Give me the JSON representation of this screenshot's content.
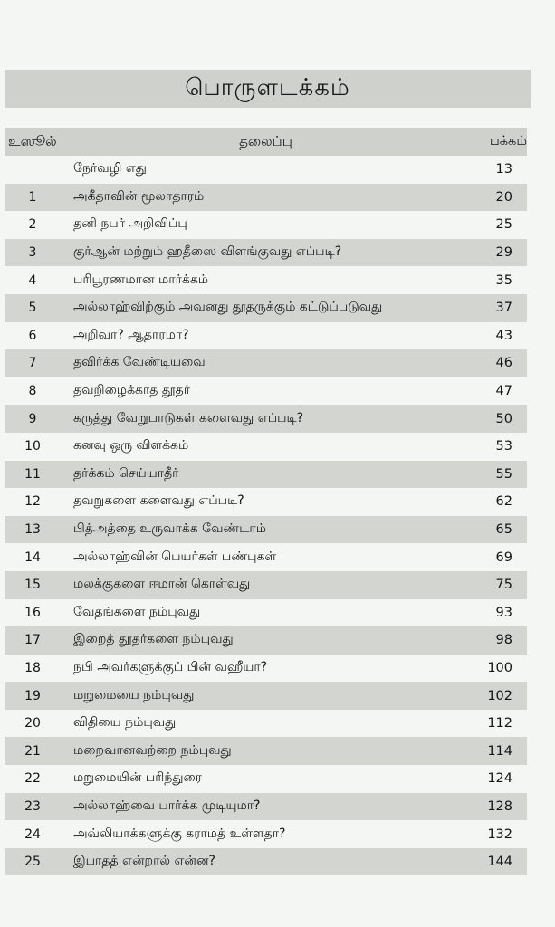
{
  "title": "பொருளடக்கம்",
  "header": {
    "number": "உஸூல்",
    "topic": "தலைப்பு",
    "page": "பக்கம்"
  },
  "rows": [
    {
      "number": "",
      "topic": "நேர்வழி எது",
      "page": "13"
    },
    {
      "number": "1",
      "topic": "அகீதாவின் மூலாதாரம்",
      "page": "20"
    },
    {
      "number": "2",
      "topic": "தனி நபர் அறிவிப்பு",
      "page": "25"
    },
    {
      "number": "3",
      "topic": "குர்ஆன் மற்றும் ஹதீஸை விளங்குவது எப்படி?",
      "page": "29"
    },
    {
      "number": "4",
      "topic": "பரிபூரணமான மார்க்கம்",
      "page": "35"
    },
    {
      "number": "5",
      "topic": "அல்லாஹ்விற்கும் அவனது தூதருக்கும் கட்டுப்படுவது",
      "page": "37"
    },
    {
      "number": "6",
      "topic": "அறிவா? ஆதாரமா?",
      "page": "43"
    },
    {
      "number": "7",
      "topic": "தவிர்க்க வேண்டியவை",
      "page": "46"
    },
    {
      "number": "8",
      "topic": "தவறிழைக்காத தூதர்",
      "page": "47"
    },
    {
      "number": "9",
      "topic": "கருத்து வேறுபாடுகள் களைவது எப்படி?",
      "page": "50"
    },
    {
      "number": "10",
      "topic": "கனவு ஒரு விளக்கம்",
      "page": "53"
    },
    {
      "number": "11",
      "topic": "தர்க்கம்  செய்யாதீர்",
      "page": "55"
    },
    {
      "number": "12",
      "topic": "தவறுகளை களைவது எப்படி?",
      "page": "62"
    },
    {
      "number": "13",
      "topic": "பித்அத்தை உருவாக்க வேண்டாம்",
      "page": "65"
    },
    {
      "number": "14",
      "topic": "அல்லாஹ்வின் பெயர்கள் பண்புகள்",
      "page": "69"
    },
    {
      "number": "15",
      "topic": "மலக்குகளை ஈமான் கொள்வது",
      "page": "75"
    },
    {
      "number": "16",
      "topic": "வேதங்களை நம்புவது",
      "page": "93"
    },
    {
      "number": "17",
      "topic": "இறைத் தூதர்களை நம்புவது",
      "page": "98"
    },
    {
      "number": "18",
      "topic": "நபி அவர்களுக்குப் பின் வஹீயா?",
      "page": "100"
    },
    {
      "number": "19",
      "topic": "மறுமையை நம்புவது",
      "page": "102"
    },
    {
      "number": "20",
      "topic": "விதியை நம்புவது",
      "page": "112"
    },
    {
      "number": "21",
      "topic": "மறைவானவற்றை நம்புவது",
      "page": "114"
    },
    {
      "number": "22",
      "topic": "மறுமையின் பரிந்துரை",
      "page": "124"
    },
    {
      "number": "23",
      "topic": "அல்லாஹ்வை பார்க்க முடியுமா?",
      "page": "128"
    },
    {
      "number": "24",
      "topic": "அவ்லியாக்களுக்கு கராமத் உள்ளதா?",
      "page": "132"
    },
    {
      "number": "25",
      "topic": "இபாதத் என்றால் என்ன?",
      "page": "144"
    }
  ]
}
